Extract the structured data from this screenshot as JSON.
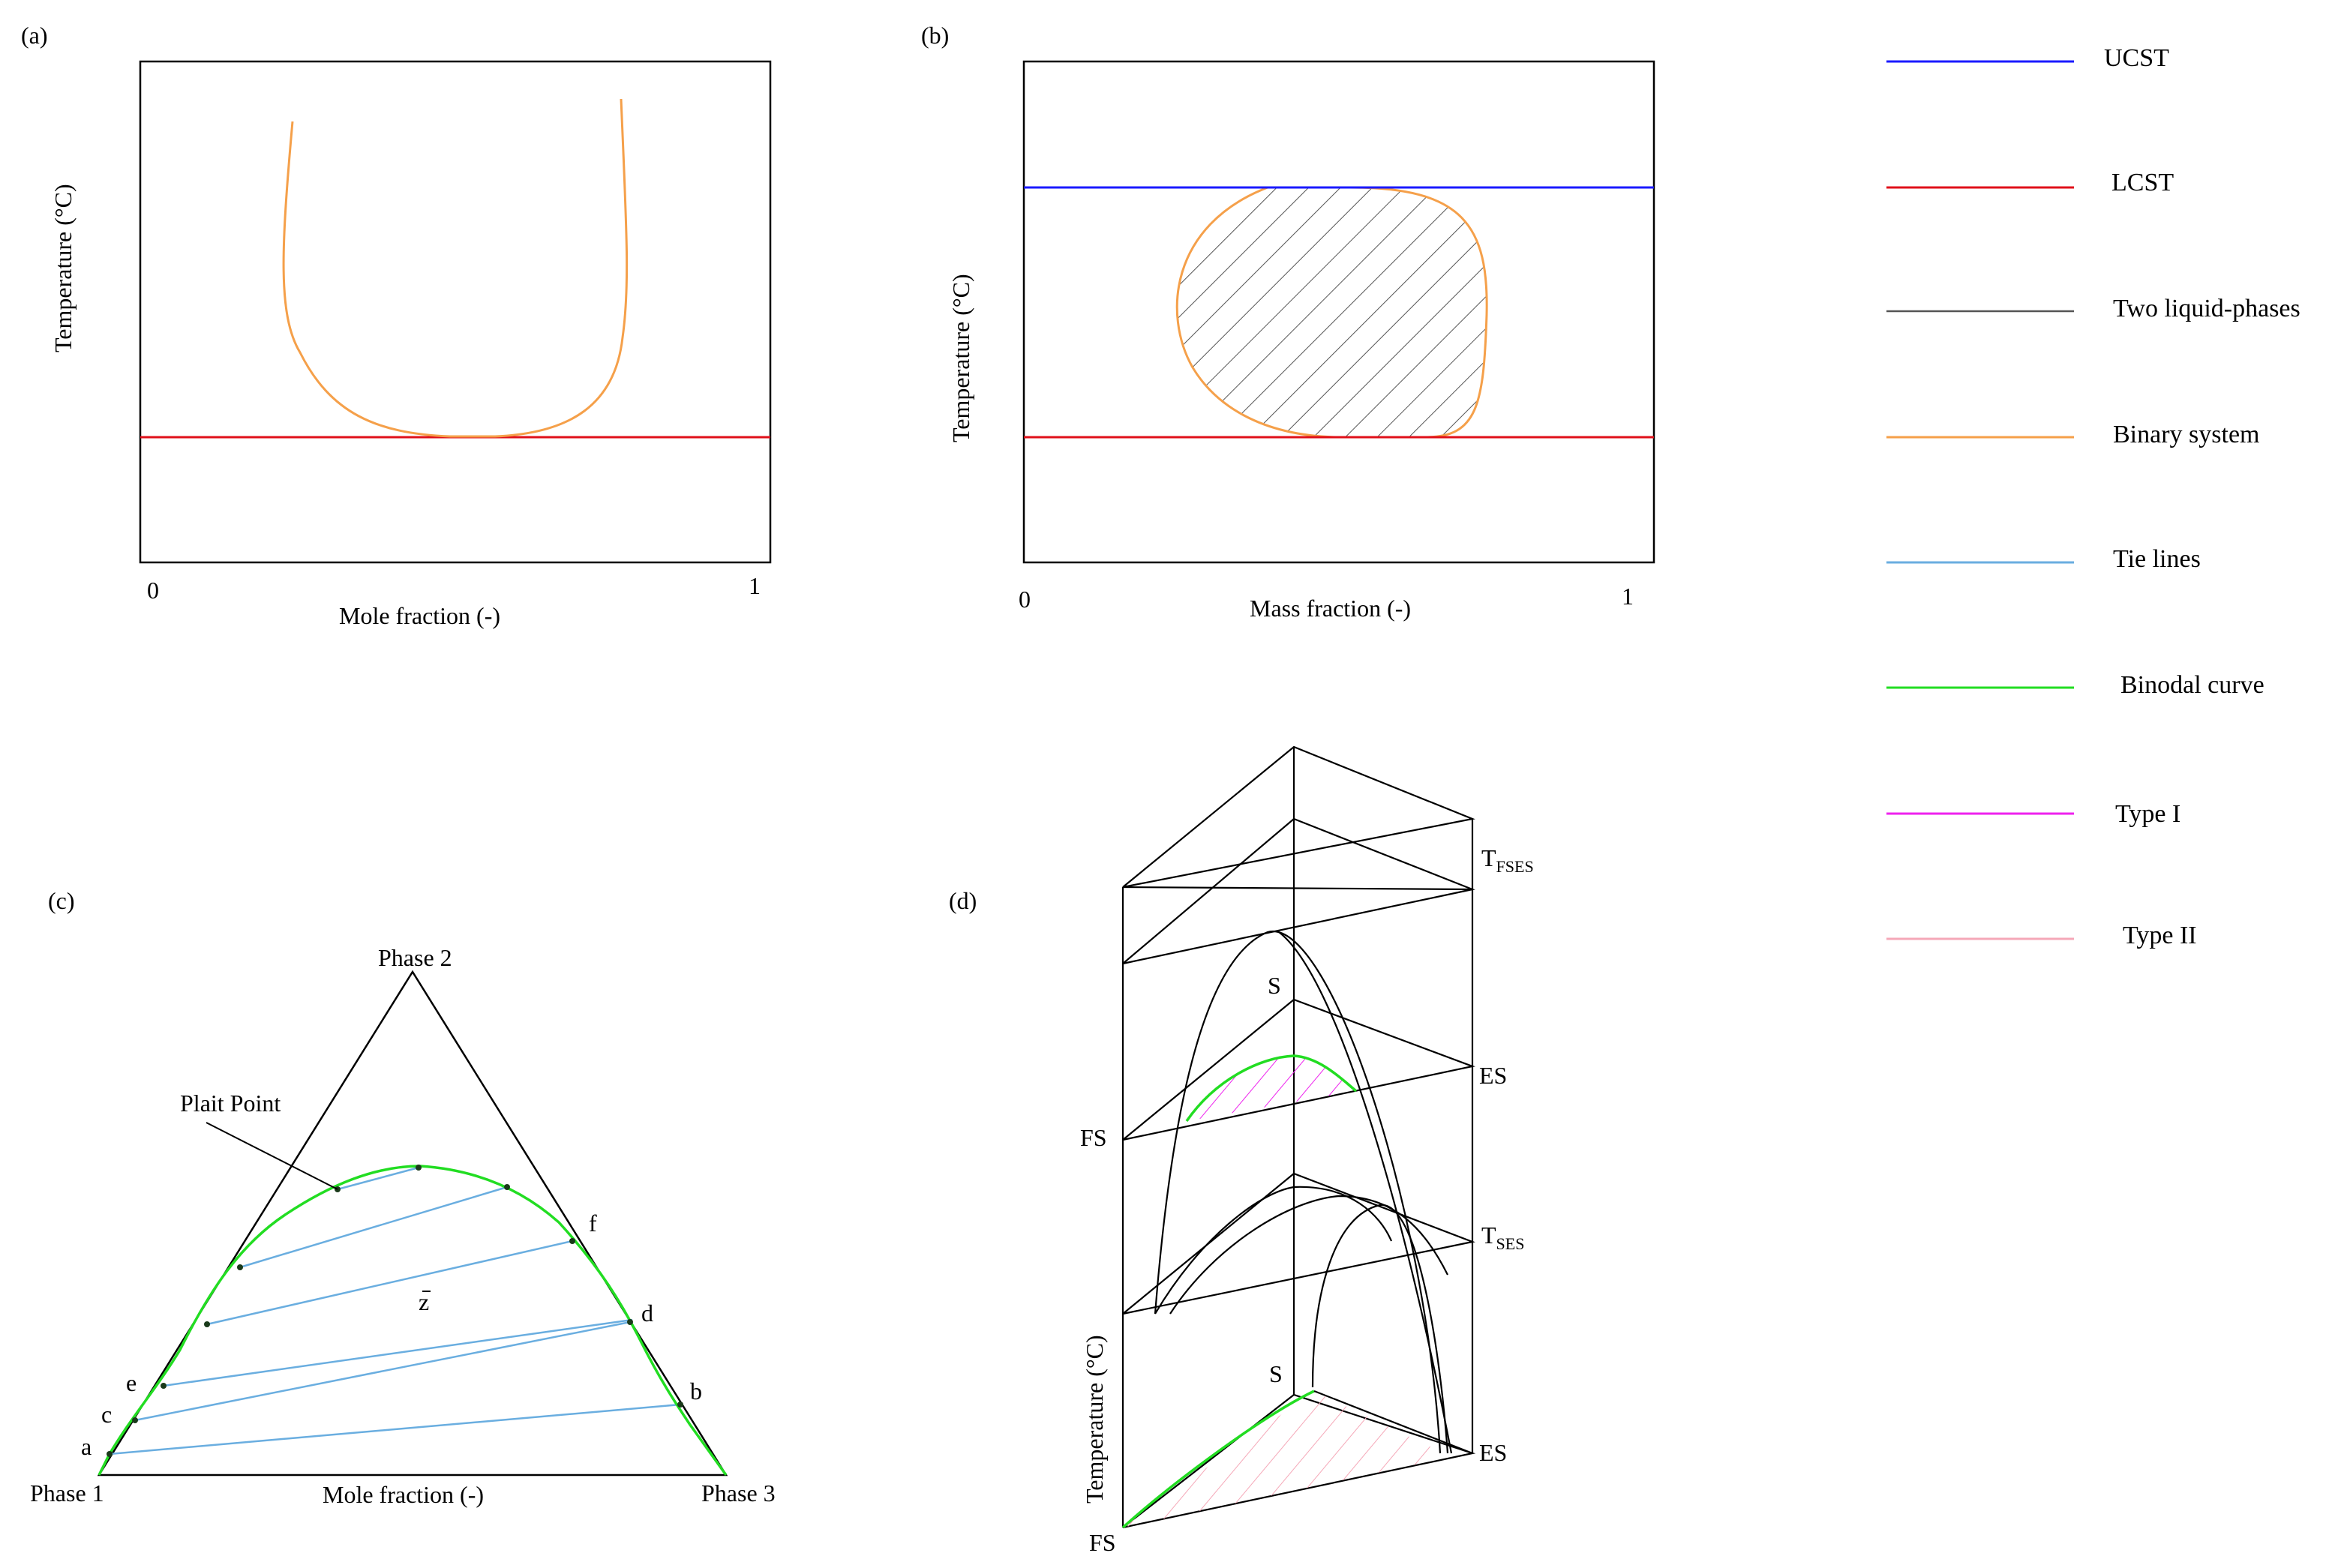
{
  "panels": {
    "a": {
      "tag": "(a)",
      "ylabel": "Temperature (°C)",
      "xlabel": "Mole fraction (-)",
      "x_min": "0",
      "x_max": "1"
    },
    "b": {
      "tag": "(b)",
      "ylabel": "Temperature (°C)",
      "xlabel": "Mass fraction (-)",
      "x_min": "0",
      "x_max": "1"
    },
    "c": {
      "tag": "(c)",
      "vertex_top": "Phase 2",
      "vertex_left": "Phase 1",
      "vertex_right": "Phase 3",
      "xlabel": "Mole fraction (-)",
      "plait_point": "Plait Point",
      "points": [
        "a",
        "b",
        "c",
        "d",
        "e",
        "f",
        "z"
      ]
    },
    "d": {
      "tag": "(d)",
      "ylabel": "Temperature (°C)",
      "fs": "FS",
      "es": "ES",
      "s": "S",
      "t_main": "T",
      "t_fses_sub": "FSES",
      "t_ses_sub": "SES"
    }
  },
  "legend": [
    {
      "label": "UCST",
      "color": "#1a1aff"
    },
    {
      "label": "LCST",
      "color": "#e0101a"
    },
    {
      "label": "Two liquid-phases",
      "color": "#555555"
    },
    {
      "label": "Binary system",
      "color": "#f5a04a"
    },
    {
      "label": "Tie lines",
      "color": "#6aaee0"
    },
    {
      "label": "Binodal curve",
      "color": "#22dd22"
    },
    {
      "label": "Type I",
      "color": "#ee22ee"
    },
    {
      "label": "Type II",
      "color": "#f5a8b8"
    }
  ]
}
